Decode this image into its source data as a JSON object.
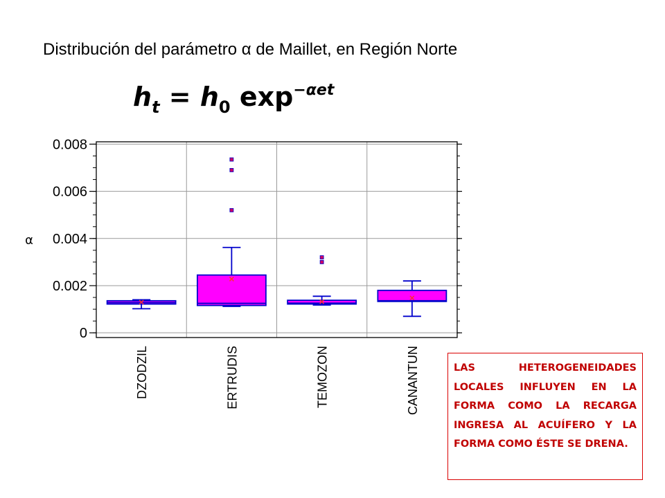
{
  "slide": {
    "title": "Distribución del parámetro α de Maillet,  en Región Norte",
    "formula": {
      "h": "h",
      "t": "t",
      "eq": " = ",
      "h0": "h",
      "zero": "0",
      "exp": " exp",
      "power": "−αet"
    },
    "note": "LAS HETEROGENEIDADES LOCALES INFLUYEN EN LA FORMA COMO LA RECARGA INGRESA AL ACUÍFERO Y LA FORMA COMO ÉSTE SE DRENA."
  },
  "chart_data": {
    "type": "boxplot",
    "title": "",
    "xlabel": "",
    "ylabel": "α",
    "ylim": [
      0,
      0.008
    ],
    "yticks": [
      "0",
      "0.002",
      "0.004",
      "0.006",
      "0.008"
    ],
    "grid": true,
    "colors": {
      "box": "#ff00ff",
      "line": "#0000cc",
      "mean": "#ff3030",
      "outlier": "#cc0066"
    },
    "categories": [
      "DZODZIL",
      "ERTRUDIS",
      "TEMOZON",
      "CANANTUN"
    ],
    "boxes": [
      {
        "name": "DZODZIL",
        "min": 0.00102,
        "q1": 0.00122,
        "median": 0.00128,
        "q3": 0.00136,
        "max": 0.0014,
        "mean": 0.0013,
        "outliers": []
      },
      {
        "name": "ERTRUDIS",
        "min": 0.00112,
        "q1": 0.00116,
        "median": 0.00125,
        "q3": 0.00245,
        "max": 0.00362,
        "mean": 0.00228,
        "outliers": [
          0.0052,
          0.0069,
          0.00735
        ]
      },
      {
        "name": "TEMOZON",
        "min": 0.00118,
        "q1": 0.00122,
        "median": 0.00126,
        "q3": 0.00138,
        "max": 0.00155,
        "mean": 0.00132,
        "outliers": [
          0.003,
          0.0032
        ]
      },
      {
        "name": "CANANTUN",
        "min": 0.0007,
        "q1": 0.00133,
        "median": 0.00136,
        "q3": 0.0018,
        "max": 0.0022,
        "mean": 0.00148,
        "outliers": []
      }
    ]
  }
}
